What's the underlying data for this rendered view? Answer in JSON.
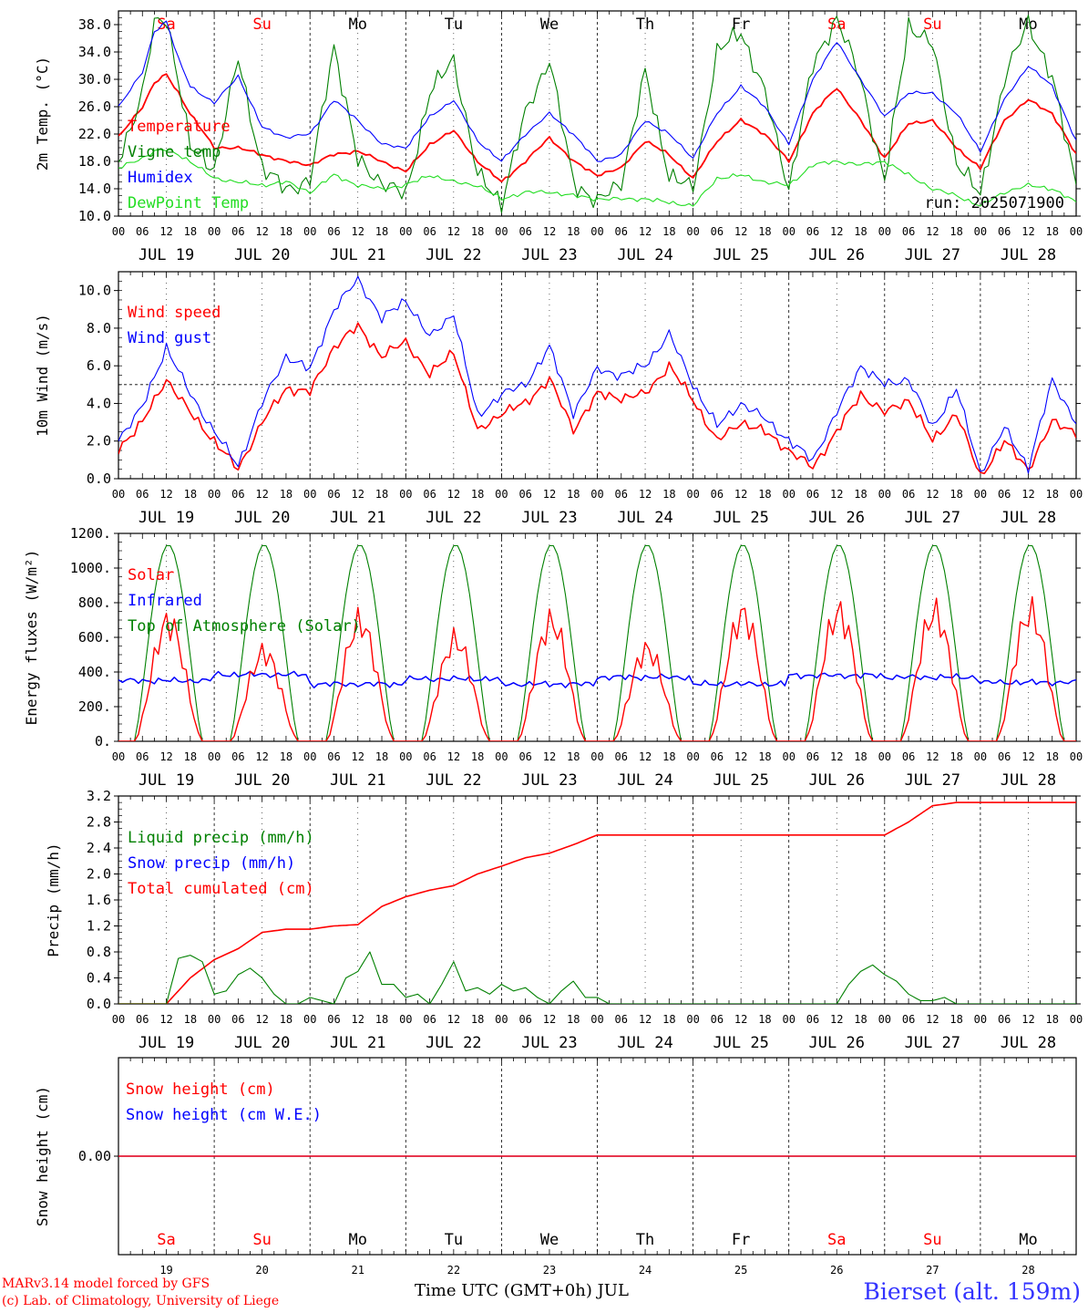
{
  "colors": {
    "red": "#ff0000",
    "green": "#008000",
    "blue": "#0000ff",
    "lightgreen": "#22dd22",
    "weekend": "#ff0000",
    "weekday": "#000000",
    "station": "#3333ff"
  },
  "days": [
    {
      "name": "Sa",
      "weekend": true
    },
    {
      "name": "Su",
      "weekend": true
    },
    {
      "name": "Mo",
      "weekend": false
    },
    {
      "name": "Tu",
      "weekend": false
    },
    {
      "name": "We",
      "weekend": false
    },
    {
      "name": "Th",
      "weekend": false
    },
    {
      "name": "Fr",
      "weekend": false
    },
    {
      "name": "Sa",
      "weekend": true
    },
    {
      "name": "Su",
      "weekend": true
    },
    {
      "name": "Mo",
      "weekend": false
    }
  ],
  "hour_ticks": [
    "00",
    "06",
    "12",
    "18"
  ],
  "last_tick": "00",
  "date_labels": [
    "JUL 19",
    "JUL 20",
    "JUL 21",
    "JUL 22",
    "JUL 23",
    "JUL 24",
    "JUL 25",
    "JUL 26",
    "JUL 27",
    "JUL 28"
  ],
  "bottom_day_numbers": [
    "19",
    "20",
    "21",
    "22",
    "23",
    "24",
    "25",
    "26",
    "27",
    "28"
  ],
  "footer": {
    "xlabel": "Time UTC (GMT+0h) JUL",
    "model_line1": "MARv3.14 model forced by GFS",
    "model_line2": "(c) Lab. of Climatology, University of Liege",
    "station": "Bierset (alt. 159m)"
  },
  "chart_data": [
    {
      "type": "line",
      "ylabel": "2m Temp. (°C)",
      "ylim": [
        10,
        40
      ],
      "yticks": [
        "10.0",
        "14.0",
        "18.0",
        "22.0",
        "26.0",
        "30.0",
        "34.0",
        "38.0"
      ],
      "run_label": "run: 2025071900",
      "legend": [
        "Temperature",
        "Vigne temp",
        "Humidex",
        "DewPoint Temp"
      ],
      "x_hours": [
        0,
        6,
        9,
        12,
        15,
        18,
        24,
        30,
        36,
        42,
        48,
        54,
        60,
        66,
        72,
        78,
        84,
        90,
        96,
        102,
        108,
        114,
        120,
        126,
        132,
        138,
        144,
        150,
        156,
        162,
        168,
        174,
        180,
        186,
        192,
        198,
        204,
        210,
        216,
        222,
        228,
        234,
        240
      ],
      "series": [
        {
          "name": "Temperature",
          "color": "red",
          "values": [
            21.5,
            26,
            29.5,
            30.7,
            28,
            25,
            20,
            20,
            19,
            18,
            17.5,
            19,
            19.5,
            18,
            16.5,
            20.5,
            22.5,
            18,
            15,
            18,
            21.5,
            18,
            16,
            17,
            21,
            19,
            15.5,
            21,
            24,
            22,
            18,
            25,
            28.8,
            24,
            18.5,
            23.5,
            24,
            20,
            17,
            24,
            27,
            25,
            19
          ]
        },
        {
          "name": "Vigne temp",
          "color": "green",
          "values": [
            18,
            28,
            38,
            39,
            30,
            20,
            17,
            33,
            17,
            14,
            15,
            35,
            18,
            15,
            13,
            28,
            33,
            16,
            12,
            25,
            33,
            15,
            12,
            15,
            31,
            16,
            14,
            34,
            37,
            28,
            14,
            32,
            39,
            30,
            15,
            38,
            35,
            18,
            13,
            30,
            38.5,
            30,
            15
          ]
        },
        {
          "name": "Humidex",
          "color": "blue",
          "values": [
            26,
            31,
            37,
            38.5,
            33,
            29,
            26.5,
            30.5,
            23,
            21.5,
            22,
            27,
            24,
            20.5,
            20,
            24.5,
            27,
            21,
            18,
            22,
            25,
            22,
            18,
            19,
            24,
            22,
            18.5,
            25,
            29,
            26,
            20.5,
            30,
            35.5,
            30,
            24.5,
            28,
            28,
            25,
            19.5,
            27,
            32,
            29,
            21
          ]
        },
        {
          "name": "DewPoint Temp",
          "color": "lightgreen",
          "values": [
            17,
            18.5,
            19.5,
            19.7,
            19,
            18,
            15.5,
            15,
            14.5,
            15,
            13.5,
            16,
            14.5,
            14,
            14.5,
            16,
            15,
            14.5,
            12.5,
            13.5,
            13.5,
            13,
            12.5,
            12.5,
            12.5,
            12,
            11.5,
            15.5,
            16,
            15,
            14.5,
            17.5,
            18,
            17.5,
            18,
            16,
            14,
            13,
            11.5,
            13.5,
            14.5,
            14,
            12
          ]
        }
      ]
    },
    {
      "type": "line",
      "ylabel": "10m Wind (m/s)",
      "ylim": [
        0,
        11
      ],
      "yticks": [
        "0.0",
        "2.0",
        "4.0",
        "6.0",
        "8.0",
        "10.0"
      ],
      "ref_line": 5,
      "legend": [
        "Wind speed",
        "Wind gust"
      ],
      "x_hours": [
        0,
        6,
        12,
        18,
        24,
        30,
        36,
        42,
        48,
        54,
        60,
        66,
        72,
        78,
        84,
        90,
        96,
        102,
        108,
        114,
        120,
        126,
        132,
        138,
        144,
        150,
        156,
        162,
        168,
        174,
        180,
        186,
        192,
        198,
        204,
        210,
        216,
        222,
        228,
        234,
        240
      ],
      "series": [
        {
          "name": "Wind speed",
          "color": "red",
          "values": [
            1.6,
            3,
            5.3,
            3.5,
            2,
            0.5,
            3,
            4.8,
            4.6,
            7,
            8.1,
            6.5,
            7.3,
            5.5,
            6.8,
            2.5,
            3.5,
            4,
            5.3,
            2.6,
            4.5,
            4.3,
            4.5,
            6,
            4.2,
            2,
            3,
            2.5,
            1.5,
            0.6,
            2.5,
            4.5,
            3.5,
            4.2,
            2,
            3.5,
            0.1,
            2,
            0.5,
            3,
            2.5
          ]
        },
        {
          "name": "Wind gust",
          "color": "blue",
          "values": [
            2.1,
            3.8,
            7,
            4.5,
            2.5,
            0.7,
            4,
            6.5,
            5.8,
            9,
            10.6,
            8.5,
            9.5,
            7.5,
            8.8,
            3.3,
            4.5,
            5,
            7,
            3.5,
            5.8,
            5.5,
            6,
            7.7,
            5,
            2.8,
            4,
            3.2,
            2,
            1,
            3.5,
            6,
            5,
            5.3,
            2.7,
            4.8,
            0.3,
            2.7,
            0.6,
            5.2,
            3
          ]
        }
      ]
    },
    {
      "type": "line",
      "ylabel": "Energy fluxes (W/m²)",
      "ylim": [
        0,
        1200
      ],
      "yticks": [
        "0.",
        "200.",
        "400.",
        "600.",
        "800.",
        "1000.",
        "1200."
      ],
      "legend": [
        "Solar",
        "Infrared",
        "Top of Atmosphere (Solar)"
      ],
      "daily": {
        "sunrise_h": 4,
        "sunset_h": 21,
        "toa_peak": 1135,
        "infrared_base": [
          350,
          385,
          330,
          360,
          330,
          370,
          330,
          380,
          370,
          340
        ],
        "solar_peak": [
          780,
          580,
          780,
          660,
          780,
          600,
          830,
          840,
          840,
          840
        ]
      },
      "series": [
        {
          "name": "Solar",
          "color": "red"
        },
        {
          "name": "Infrared",
          "color": "blue"
        },
        {
          "name": "Top of Atmosphere (Solar)",
          "color": "green"
        }
      ]
    },
    {
      "type": "line",
      "ylabel": "Precip (mm/h)",
      "ylim": [
        0,
        3.2
      ],
      "yticks": [
        "0.0",
        "0.4",
        "0.8",
        "1.2",
        "1.6",
        "2.0",
        "2.4",
        "2.8",
        "3.2"
      ],
      "legend": [
        "Liquid precip (mm/h)",
        "Snow precip (mm/h)",
        "Total cumulated (cm)"
      ],
      "series": [
        {
          "name": "Total cumulated (cm)",
          "color": "red",
          "x_hours": [
            0,
            12,
            18,
            24,
            30,
            36,
            42,
            48,
            54,
            60,
            66,
            72,
            78,
            84,
            90,
            96,
            102,
            108,
            114,
            120,
            180,
            192,
            198,
            204,
            210,
            240
          ],
          "values": [
            0,
            0,
            0.4,
            0.68,
            0.85,
            1.1,
            1.15,
            1.15,
            1.2,
            1.22,
            1.5,
            1.65,
            1.75,
            1.82,
            2.0,
            2.12,
            2.25,
            2.32,
            2.45,
            2.6,
            2.6,
            2.6,
            2.8,
            3.05,
            3.1,
            3.1
          ]
        },
        {
          "name": "Liquid precip (mm/h)",
          "color": "green",
          "x_hours": [
            0,
            12,
            15,
            18,
            21,
            24,
            27,
            30,
            33,
            36,
            39,
            42,
            45,
            48,
            51,
            54,
            57,
            60,
            63,
            66,
            69,
            72,
            75,
            78,
            81,
            84,
            87,
            90,
            93,
            96,
            99,
            102,
            105,
            108,
            111,
            114,
            117,
            120,
            123,
            180,
            183,
            186,
            189,
            192,
            195,
            198,
            201,
            204,
            207,
            210,
            240
          ],
          "values": [
            0,
            0,
            0.7,
            0.75,
            0.65,
            0.15,
            0.2,
            0.45,
            0.55,
            0.4,
            0.15,
            0,
            0,
            0.1,
            0.05,
            0,
            0.4,
            0.5,
            0.8,
            0.3,
            0.3,
            0.1,
            0.15,
            0,
            0.3,
            0.65,
            0.2,
            0.25,
            0.15,
            0.3,
            0.2,
            0.25,
            0.1,
            0,
            0.2,
            0.35,
            0.1,
            0.1,
            0,
            0,
            0.3,
            0.5,
            0.6,
            0.45,
            0.35,
            0.15,
            0.05,
            0.05,
            0.1,
            0,
            0
          ]
        },
        {
          "name": "Snow precip (mm/h)",
          "color": "blue",
          "x_hours": [],
          "values": []
        }
      ]
    },
    {
      "type": "line",
      "ylabel": "Snow height (cm)",
      "ylim": [
        -1,
        1
      ],
      "yticks": [
        "0.00"
      ],
      "legend": [
        "Snow height (cm)",
        "Snow height (cm W.E.)"
      ],
      "series": [
        {
          "name": "Snow height (cm)",
          "color": "red",
          "x_hours": [
            0,
            240
          ],
          "values": [
            0,
            0
          ]
        },
        {
          "name": "Snow height (cm W.E.)",
          "color": "blue",
          "x_hours": [
            0,
            240
          ],
          "values": [
            0,
            0
          ]
        }
      ]
    }
  ]
}
